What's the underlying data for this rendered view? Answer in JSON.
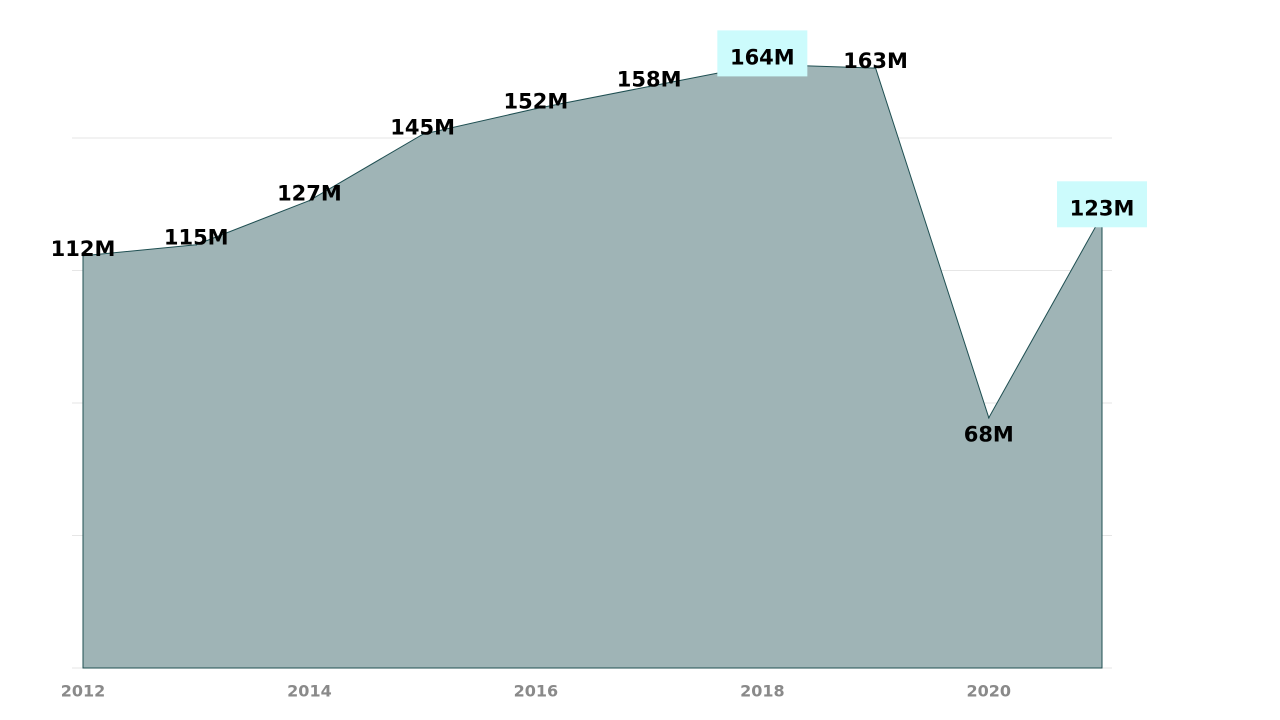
{
  "chart_data": {
    "type": "area",
    "title": "",
    "xlabel": "",
    "ylabel": "",
    "x": [
      2012,
      2013,
      2014,
      2015,
      2016,
      2017,
      2018,
      2019,
      2020,
      2021
    ],
    "x_tick_labels": [
      "2012",
      "2014",
      "2016",
      "2018",
      "2020"
    ],
    "series": [
      {
        "values": [
          112,
          115,
          127,
          145,
          152,
          158,
          164,
          163,
          68,
          123
        ],
        "labels": [
          "112M",
          "115M",
          "127M",
          "145M",
          "152M",
          "158M",
          "164M",
          "163M",
          "68M",
          "123M"
        ],
        "highlighted": [
          6,
          9
        ]
      }
    ],
    "ylim": [
      0,
      180
    ],
    "y_gridlines": [
      0,
      36,
      72,
      108,
      144
    ],
    "grid": true,
    "legend": "none",
    "colors": {
      "fill": "#9fb4b6",
      "line": "#1f4f52",
      "highlight": "#ccfbfc",
      "tick_text": "#8a8a8a",
      "label_text": "#000000"
    }
  }
}
